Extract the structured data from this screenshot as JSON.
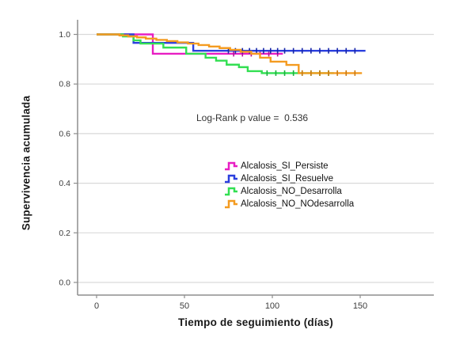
{
  "chart": {
    "y_axis_title": "Supervivencia acumulada",
    "x_axis_title": "Tiempo de seguimiento (días)",
    "annotation": "Log-Rank p value =  0.536",
    "legend": [
      {
        "label": "Alcalosis_SI_Persiste",
        "color": "#E81EC3",
        "marker": "step-line-icon"
      },
      {
        "label": "Alcalosis_SI_Resuelve",
        "color": "#2B3FDE",
        "marker": "step-line-icon"
      },
      {
        "label": "Alcalosis_NO_Desarrolla",
        "color": "#32DF52",
        "marker": "step-line-icon"
      },
      {
        "label": "Alcalosis_NO_NOdesarrolla",
        "color": "#F49B20",
        "marker": "step-line-icon"
      }
    ],
    "colors": {
      "grid": "#D9D9D9",
      "axis": "#8E8E8E",
      "tick_text": "#3C3C3C"
    }
  },
  "chart_data": {
    "type": "line",
    "subtype": "kaplan-meier-step",
    "title": "",
    "xlabel": "Tiempo de seguimiento (días)",
    "ylabel": "Supervivencia acumulada",
    "annotation": "Log-Rank p value = 0.536",
    "p_value": 0.536,
    "xlim": [
      -11,
      192
    ],
    "ylim": [
      -0.05,
      1.05
    ],
    "xticks": [
      0,
      50,
      100,
      150
    ],
    "xtick_labels": [
      "0",
      "50",
      "100",
      "150"
    ],
    "yticks": [
      1.0,
      0.8,
      0.6,
      0.4,
      0.2,
      0.0
    ],
    "ytick_labels": [
      "1.0",
      "0.8",
      "0.6",
      "0.4",
      "0.2",
      "0.0"
    ],
    "grid": "horizontal",
    "legend_position": "center-right",
    "series": [
      {
        "name": "Alcalosis_SI_Persiste",
        "color": "#E81EC3",
        "censor_color": "#B80F97",
        "start": [
          0,
          1.0
        ],
        "steps": [
          [
            32,
            0.922
          ]
        ],
        "end_day": 106,
        "censor_days": [
          78,
          83,
          88,
          93,
          98,
          103
        ]
      },
      {
        "name": "Alcalosis_SI_Resuelve",
        "color": "#2B3FDE",
        "censor_color": "#1726A8",
        "start": [
          0,
          1.0
        ],
        "steps": [
          [
            21,
            0.966
          ],
          [
            55,
            0.934
          ]
        ],
        "end_day": 153,
        "censor_days": [
          75,
          79,
          83,
          87,
          91,
          95,
          99,
          103,
          107,
          112,
          117,
          122,
          127,
          132,
          137,
          142,
          147
        ]
      },
      {
        "name": "Alcalosis_NO_Desarrolla",
        "color": "#32DF52",
        "censor_color": "#17B23C",
        "start": [
          0,
          1.0
        ],
        "steps": [
          [
            15,
            0.992
          ],
          [
            21,
            0.976
          ],
          [
            25,
            0.963
          ],
          [
            38,
            0.947
          ],
          [
            51,
            0.922
          ],
          [
            62,
            0.906
          ],
          [
            68,
            0.894
          ],
          [
            74,
            0.878
          ],
          [
            81,
            0.868
          ],
          [
            86,
            0.852
          ],
          [
            94,
            0.844
          ]
        ],
        "end_day": 135,
        "censor_days": [
          97,
          102,
          107,
          112,
          117,
          122,
          127,
          132
        ]
      },
      {
        "name": "Alcalosis_NO_NOdesarrolla",
        "color": "#F49B20",
        "censor_color": "#CC7A11",
        "start": [
          0,
          1.0
        ],
        "steps": [
          [
            13,
            0.996
          ],
          [
            18,
            0.992
          ],
          [
            23,
            0.988
          ],
          [
            28,
            0.983
          ],
          [
            34,
            0.978
          ],
          [
            40,
            0.973
          ],
          [
            46,
            0.968
          ],
          [
            52,
            0.963
          ],
          [
            58,
            0.957
          ],
          [
            64,
            0.951
          ],
          [
            70,
            0.945
          ],
          [
            76,
            0.938
          ],
          [
            82,
            0.93
          ],
          [
            88,
            0.922
          ],
          [
            93,
            0.906
          ],
          [
            99,
            0.89
          ],
          [
            108,
            0.877
          ],
          [
            115,
            0.844
          ]
        ],
        "end_day": 151,
        "censor_days": [
          117,
          122,
          127,
          132,
          137,
          142,
          147
        ]
      }
    ]
  }
}
